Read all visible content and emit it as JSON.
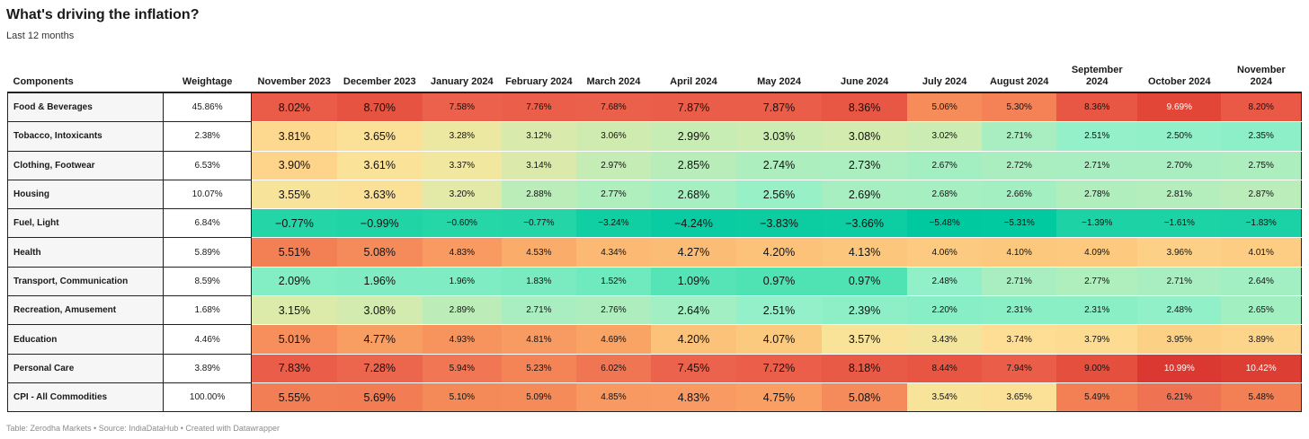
{
  "title": "What's driving the inflation?",
  "subtitle": "Last 12 months",
  "footer": "Table: Zerodha Markets • Source: IndiaDataHub • Created with Datawrapper",
  "chart_data": {
    "type": "heatmap",
    "title": "What's driving the inflation?",
    "subtitle": "Last 12 months",
    "columns": [
      "Components",
      "Weightage",
      "November 2023",
      "December 2023",
      "January 2024",
      "February 2024",
      "March 2024",
      "April 2024",
      "May 2024",
      "June 2024",
      "July 2024",
      "August 2024",
      "September 2024",
      "October 2024",
      "November 2024"
    ],
    "rows": [
      {
        "component": "Food & Beverages",
        "weightage": "45.86%",
        "values": [
          8.02,
          8.7,
          7.58,
          7.76,
          7.68,
          7.87,
          7.87,
          8.36,
          5.06,
          5.3,
          8.36,
          9.69,
          8.2
        ]
      },
      {
        "component": "Tobacco, Intoxicants",
        "weightage": "2.38%",
        "values": [
          3.81,
          3.65,
          3.28,
          3.12,
          3.06,
          2.99,
          3.03,
          3.08,
          3.02,
          2.71,
          2.51,
          2.5,
          2.35
        ]
      },
      {
        "component": "Clothing, Footwear",
        "weightage": "6.53%",
        "values": [
          3.9,
          3.61,
          3.37,
          3.14,
          2.97,
          2.85,
          2.74,
          2.73,
          2.67,
          2.72,
          2.71,
          2.7,
          2.75
        ]
      },
      {
        "component": "Housing",
        "weightage": "10.07%",
        "values": [
          3.55,
          3.63,
          3.2,
          2.88,
          2.77,
          2.68,
          2.56,
          2.69,
          2.68,
          2.66,
          2.78,
          2.81,
          2.87
        ]
      },
      {
        "component": "Fuel, Light",
        "weightage": "6.84%",
        "values": [
          -0.77,
          -0.99,
          -0.6,
          -0.77,
          -3.24,
          -4.24,
          -3.83,
          -3.66,
          -5.48,
          -5.31,
          -1.39,
          -1.61,
          -1.83
        ]
      },
      {
        "component": "Health",
        "weightage": "5.89%",
        "values": [
          5.51,
          5.08,
          4.83,
          4.53,
          4.34,
          4.27,
          4.2,
          4.13,
          4.06,
          4.1,
          4.09,
          3.96,
          4.01
        ]
      },
      {
        "component": "Transport, Communication",
        "weightage": "8.59%",
        "values": [
          2.09,
          1.96,
          1.96,
          1.83,
          1.52,
          1.09,
          0.97,
          0.97,
          2.48,
          2.71,
          2.77,
          2.71,
          2.64
        ]
      },
      {
        "component": "Recreation, Amusement",
        "weightage": "1.68%",
        "values": [
          3.15,
          3.08,
          2.89,
          2.71,
          2.76,
          2.64,
          2.51,
          2.39,
          2.2,
          2.31,
          2.31,
          2.48,
          2.65
        ]
      },
      {
        "component": "Education",
        "weightage": "4.46%",
        "values": [
          5.01,
          4.77,
          4.93,
          4.81,
          4.69,
          4.2,
          4.07,
          3.57,
          3.43,
          3.74,
          3.79,
          3.95,
          3.89
        ]
      },
      {
        "component": "Personal Care",
        "weightage": "3.89%",
        "values": [
          7.83,
          7.28,
          5.94,
          5.23,
          6.02,
          7.45,
          7.72,
          8.18,
          8.44,
          7.94,
          9.0,
          10.99,
          10.42
        ]
      },
      {
        "component": "CPI - All Commodities",
        "weightage": "100.00%",
        "values": [
          5.55,
          5.69,
          5.1,
          5.09,
          4.85,
          4.83,
          4.75,
          5.08,
          3.54,
          3.65,
          5.49,
          6.21,
          5.48
        ]
      }
    ],
    "colors": {
      "hot": "#e34a33",
      "warm": "#f9a86b",
      "neutral": "#fde49a",
      "cool": "#92f0c8",
      "cold": "#00c9a0"
    }
  }
}
